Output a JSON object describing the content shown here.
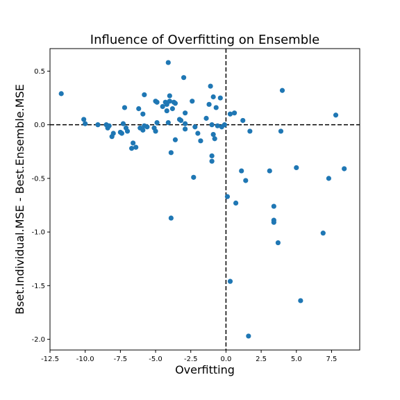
{
  "chart_data": {
    "type": "scatter",
    "title": "Influence of Overfitting on Ensemble",
    "xlabel": "Overfitting",
    "ylabel": "Bset.Individual.MSE - Best.Ensemble.MSE",
    "xlim": [
      -12.5,
      9.5
    ],
    "ylim": [
      -2.1,
      0.71
    ],
    "xticks": [
      -12.5,
      -10.0,
      -7.5,
      -5.0,
      -2.5,
      0.0,
      2.5,
      5.0,
      7.5
    ],
    "xtick_labels": [
      "-12.5",
      "-10.0",
      "-7.5",
      "-5.0",
      "-2.5",
      "0.0",
      "2.5",
      "5.0",
      "7.5"
    ],
    "yticks": [
      0.5,
      0.0,
      -0.5,
      -1.0,
      -1.5,
      -2.0
    ],
    "ytick_labels": [
      "0.5",
      "0.0",
      "-0.5",
      "-1.0",
      "-1.5",
      "-2.0"
    ],
    "reference_lines": {
      "x": 0,
      "y": 0,
      "style": "dashed"
    },
    "grid": false,
    "marker_color": "#1f77b4",
    "points": [
      {
        "x": -11.7,
        "y": 0.29
      },
      {
        "x": -10.1,
        "y": 0.05
      },
      {
        "x": -10.0,
        "y": 0.01
      },
      {
        "x": -9.1,
        "y": 0.0
      },
      {
        "x": -8.5,
        "y": 0.0
      },
      {
        "x": -8.4,
        "y": -0.03
      },
      {
        "x": -8.3,
        "y": -0.01
      },
      {
        "x": -8.1,
        "y": -0.11
      },
      {
        "x": -8.0,
        "y": -0.08
      },
      {
        "x": -7.5,
        "y": -0.07
      },
      {
        "x": -7.4,
        "y": -0.08
      },
      {
        "x": -7.3,
        "y": 0.01
      },
      {
        "x": -7.2,
        "y": 0.16
      },
      {
        "x": -7.1,
        "y": -0.03
      },
      {
        "x": -7.0,
        "y": -0.06
      },
      {
        "x": -6.7,
        "y": -0.22
      },
      {
        "x": -6.6,
        "y": -0.17
      },
      {
        "x": -6.4,
        "y": -0.21
      },
      {
        "x": -6.2,
        "y": 0.15
      },
      {
        "x": -6.1,
        "y": -0.03
      },
      {
        "x": -5.9,
        "y": 0.1
      },
      {
        "x": -5.9,
        "y": -0.05
      },
      {
        "x": -5.8,
        "y": 0.28
      },
      {
        "x": -5.8,
        "y": -0.01
      },
      {
        "x": -5.6,
        "y": -0.02
      },
      {
        "x": -5.1,
        "y": -0.03
      },
      {
        "x": -5.0,
        "y": 0.22
      },
      {
        "x": -5.0,
        "y": -0.06
      },
      {
        "x": -4.9,
        "y": 0.21
      },
      {
        "x": -4.9,
        "y": 0.02
      },
      {
        "x": -4.5,
        "y": 0.17
      },
      {
        "x": -4.3,
        "y": 0.21
      },
      {
        "x": -4.2,
        "y": 0.13
      },
      {
        "x": -4.2,
        "y": 0.19
      },
      {
        "x": -4.1,
        "y": 0.58
      },
      {
        "x": -4.1,
        "y": 0.02
      },
      {
        "x": -4.0,
        "y": 0.27
      },
      {
        "x": -4.0,
        "y": 0.22
      },
      {
        "x": -3.9,
        "y": -0.26
      },
      {
        "x": -3.9,
        "y": -0.87
      },
      {
        "x": -3.8,
        "y": 0.15
      },
      {
        "x": -3.7,
        "y": 0.21
      },
      {
        "x": -3.6,
        "y": -0.14
      },
      {
        "x": -3.6,
        "y": 0.2
      },
      {
        "x": -3.3,
        "y": 0.05
      },
      {
        "x": -3.2,
        "y": 0.04
      },
      {
        "x": -3.0,
        "y": 0.44
      },
      {
        "x": -2.9,
        "y": 0.11
      },
      {
        "x": -2.9,
        "y": 0.01
      },
      {
        "x": -2.9,
        "y": -0.04
      },
      {
        "x": -2.4,
        "y": 0.22
      },
      {
        "x": -2.3,
        "y": -0.49
      },
      {
        "x": -2.2,
        "y": -0.02
      },
      {
        "x": -2.0,
        "y": -0.08
      },
      {
        "x": -1.8,
        "y": -0.15
      },
      {
        "x": -1.4,
        "y": 0.06
      },
      {
        "x": -1.2,
        "y": 0.19
      },
      {
        "x": -1.1,
        "y": 0.36
      },
      {
        "x": -1.0,
        "y": 0.0
      },
      {
        "x": -1.0,
        "y": -0.29
      },
      {
        "x": -1.0,
        "y": -0.34
      },
      {
        "x": -0.9,
        "y": 0.26
      },
      {
        "x": -0.9,
        "y": -0.09
      },
      {
        "x": -0.8,
        "y": -0.13
      },
      {
        "x": -0.7,
        "y": 0.16
      },
      {
        "x": -0.6,
        "y": -0.01
      },
      {
        "x": -0.4,
        "y": 0.25
      },
      {
        "x": -0.3,
        "y": -0.02
      },
      {
        "x": -0.1,
        "y": 0.0
      },
      {
        "x": 0.1,
        "y": -0.67
      },
      {
        "x": 0.3,
        "y": 0.1
      },
      {
        "x": 0.3,
        "y": -1.46
      },
      {
        "x": 0.6,
        "y": 0.11
      },
      {
        "x": 0.7,
        "y": -0.73
      },
      {
        "x": 1.1,
        "y": -0.43
      },
      {
        "x": 1.2,
        "y": 0.04
      },
      {
        "x": 1.4,
        "y": -0.52
      },
      {
        "x": 1.6,
        "y": -1.97
      },
      {
        "x": 1.7,
        "y": -0.06
      },
      {
        "x": 3.1,
        "y": -0.43
      },
      {
        "x": 3.4,
        "y": -0.76
      },
      {
        "x": 3.4,
        "y": -0.89
      },
      {
        "x": 3.4,
        "y": -0.91
      },
      {
        "x": 3.7,
        "y": -1.1
      },
      {
        "x": 3.9,
        "y": -0.06
      },
      {
        "x": 4.0,
        "y": 0.32
      },
      {
        "x": 5.0,
        "y": -0.4
      },
      {
        "x": 5.3,
        "y": -1.64
      },
      {
        "x": 6.9,
        "y": -1.01
      },
      {
        "x": 7.3,
        "y": -0.5
      },
      {
        "x": 7.8,
        "y": 0.09
      },
      {
        "x": 8.4,
        "y": -0.41
      }
    ]
  }
}
